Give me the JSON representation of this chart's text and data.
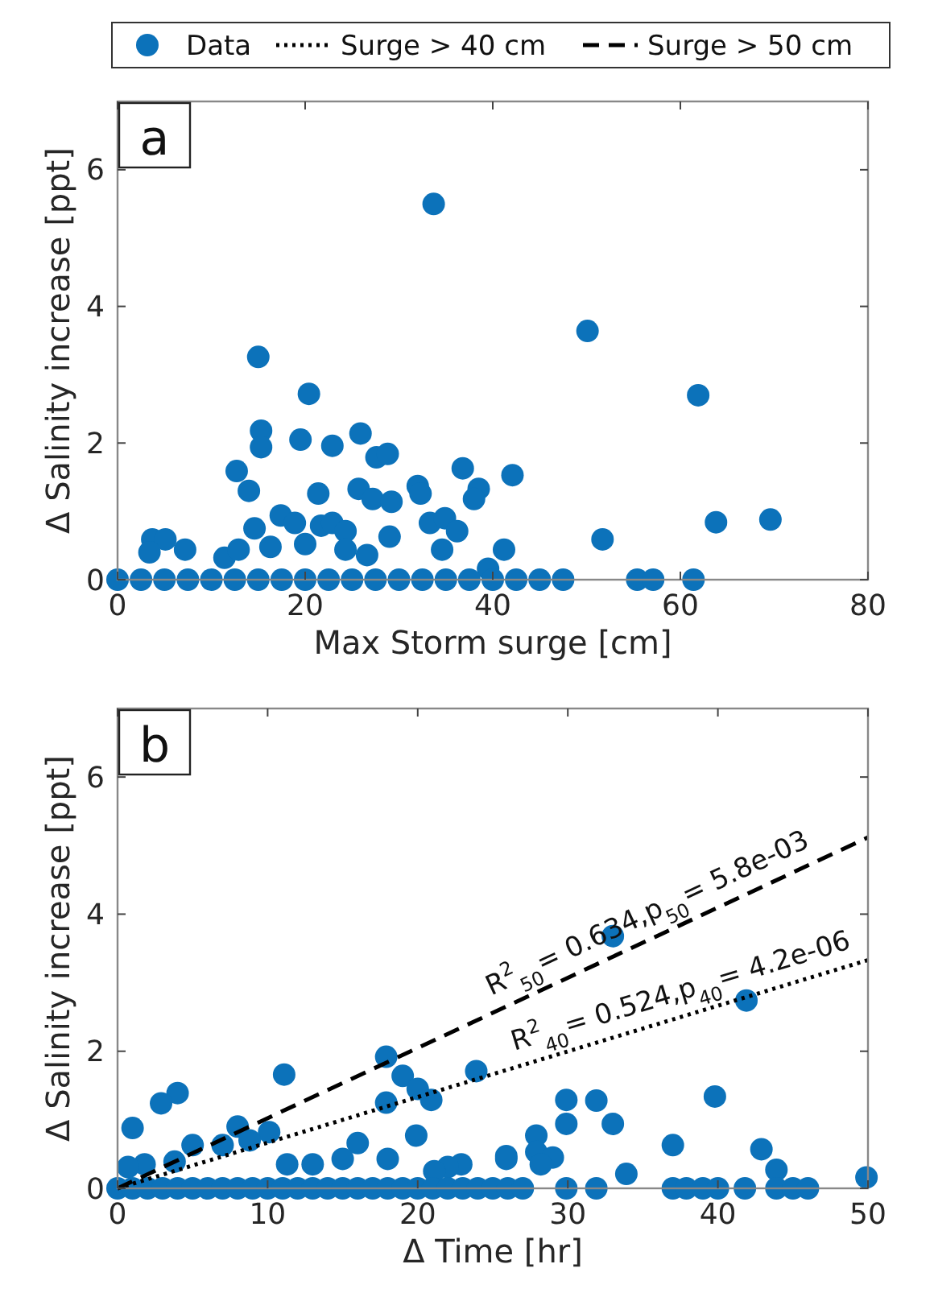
{
  "chart_data": [
    {
      "type": "scatter",
      "title": "a",
      "xlabel": "Max Storm surge [cm]",
      "ylabel": "Δ Salinity increase [ppt]",
      "xlim": [
        0,
        80
      ],
      "ylim": [
        0,
        7
      ],
      "xticks": [
        0,
        20,
        40,
        60,
        80
      ],
      "yticks": [
        0,
        2,
        4,
        6
      ],
      "marker": "circle",
      "grid": false,
      "series": [
        {
          "name": "Data",
          "color": "#0c72ba",
          "x": [
            33.7,
            15,
            20.4,
            15.3,
            15.3,
            19.5,
            22.9,
            25.9,
            27.6,
            28.8,
            12.7,
            14,
            21.4,
            25.7,
            27.2,
            29.2,
            32,
            32.3,
            36.8,
            38.5,
            38,
            42.1,
            33.3,
            34.9,
            36.2,
            29,
            14.6,
            17.4,
            18.9,
            21.7,
            22.9,
            24.3,
            3.7,
            5.1,
            3.4,
            7.2,
            11.4,
            12.9,
            16.3,
            20,
            24.3,
            26.6,
            34.6,
            41.2,
            39.5,
            50.1,
            61.9,
            63.8,
            69.6,
            51.7,
            0,
            2.5,
            5,
            7.5,
            10,
            12.5,
            15,
            17.5,
            20,
            22.5,
            25,
            27.5,
            30,
            32.5,
            35,
            37.5,
            40,
            42.5,
            45,
            47.5,
            55.4,
            57.1,
            61.4
          ],
          "values": [
            5.5,
            3.26,
            2.72,
            2.18,
            1.94,
            2.05,
            1.96,
            2.14,
            1.79,
            1.84,
            1.59,
            1.3,
            1.26,
            1.33,
            1.18,
            1.14,
            1.37,
            1.26,
            1.63,
            1.33,
            1.18,
            1.53,
            0.83,
            0.9,
            0.71,
            0.63,
            0.75,
            0.94,
            0.83,
            0.79,
            0.83,
            0.71,
            0.59,
            0.59,
            0.4,
            0.44,
            0.32,
            0.44,
            0.48,
            0.52,
            0.44,
            0.36,
            0.44,
            0.44,
            0.16,
            3.64,
            2.7,
            0.84,
            0.88,
            0.59,
            0,
            0,
            0,
            0,
            0,
            0,
            0,
            0,
            0,
            0,
            0,
            0,
            0,
            0,
            0,
            0,
            0,
            0,
            0,
            0,
            0,
            0,
            0
          ]
        }
      ]
    },
    {
      "type": "scatter",
      "title": "b",
      "xlabel": "Δ Time [hr]",
      "ylabel": "Δ Salinity increase [ppt]",
      "xlim": [
        0,
        50
      ],
      "ylim": [
        0,
        7
      ],
      "xticks": [
        0,
        10,
        20,
        30,
        40,
        50
      ],
      "yticks": [
        0,
        2,
        4,
        6
      ],
      "marker": "circle",
      "grid": false,
      "legend": "top",
      "annotations": [
        "R$^{2}$$_{50}$= 0.634,p$_{50}$= 5.8e-03",
        "R$^{2}$$_{40}$= 0.524,p$_{40}$= 4.2e-06"
      ],
      "series": [
        {
          "name": "Data",
          "color": "#0c72ba",
          "x": [
            17.9,
            19,
            20,
            20.9,
            17.9,
            11.1,
            23.9,
            4,
            2.9,
            1,
            8,
            10.1,
            19.9,
            5,
            7,
            8.8,
            16,
            15,
            13,
            11.3,
            1.8,
            0.7,
            3.8,
            18,
            22.9,
            25.9,
            22,
            21.1,
            33,
            41.9,
            29.9,
            31.9,
            39.8,
            29.9,
            33,
            27.9,
            27.9,
            37,
            42.9,
            25.9,
            29,
            33.9,
            43.9,
            49.9,
            28.2,
            0,
            1,
            2,
            3,
            4,
            5,
            6,
            7,
            8,
            9,
            10,
            11,
            12,
            13,
            14,
            15,
            16,
            17,
            18,
            19,
            20,
            21,
            22,
            23,
            24,
            25,
            26,
            27,
            29.9,
            31.9,
            37,
            37.9,
            39,
            40,
            41.8,
            43.9,
            45,
            46
          ],
          "values": [
            1.92,
            1.64,
            1.45,
            1.29,
            1.25,
            1.66,
            1.71,
            1.39,
            1.24,
            0.88,
            0.9,
            0.82,
            0.77,
            0.63,
            0.63,
            0.7,
            0.66,
            0.43,
            0.35,
            0.35,
            0.35,
            0.31,
            0.39,
            0.43,
            0.35,
            0.47,
            0.31,
            0.25,
            3.68,
            2.74,
            1.29,
            1.28,
            1.34,
            0.94,
            0.94,
            0.77,
            0.53,
            0.63,
            0.57,
            0.43,
            0.45,
            0.21,
            0.27,
            0.16,
            0.35,
            0,
            0,
            0,
            0,
            0,
            0,
            0,
            0,
            0,
            0,
            0,
            0,
            0,
            0,
            0,
            0,
            0,
            0,
            0,
            0,
            0,
            0,
            0,
            0,
            0,
            0,
            0,
            0,
            0,
            0,
            0,
            0,
            0,
            0,
            0,
            0,
            0,
            0
          ]
        },
        {
          "name": "Surge > 40 cm",
          "type": "line",
          "line_style": "dotted",
          "marker": "none",
          "color": "#000000",
          "x": [
            0,
            50
          ],
          "values": [
            0,
            3.33
          ]
        },
        {
          "name": "Surge > 50 cm",
          "type": "line",
          "line_style": "dashed",
          "marker": "none",
          "color": "#000000",
          "x": [
            0,
            50
          ],
          "values": [
            0,
            5.12
          ]
        }
      ]
    }
  ]
}
